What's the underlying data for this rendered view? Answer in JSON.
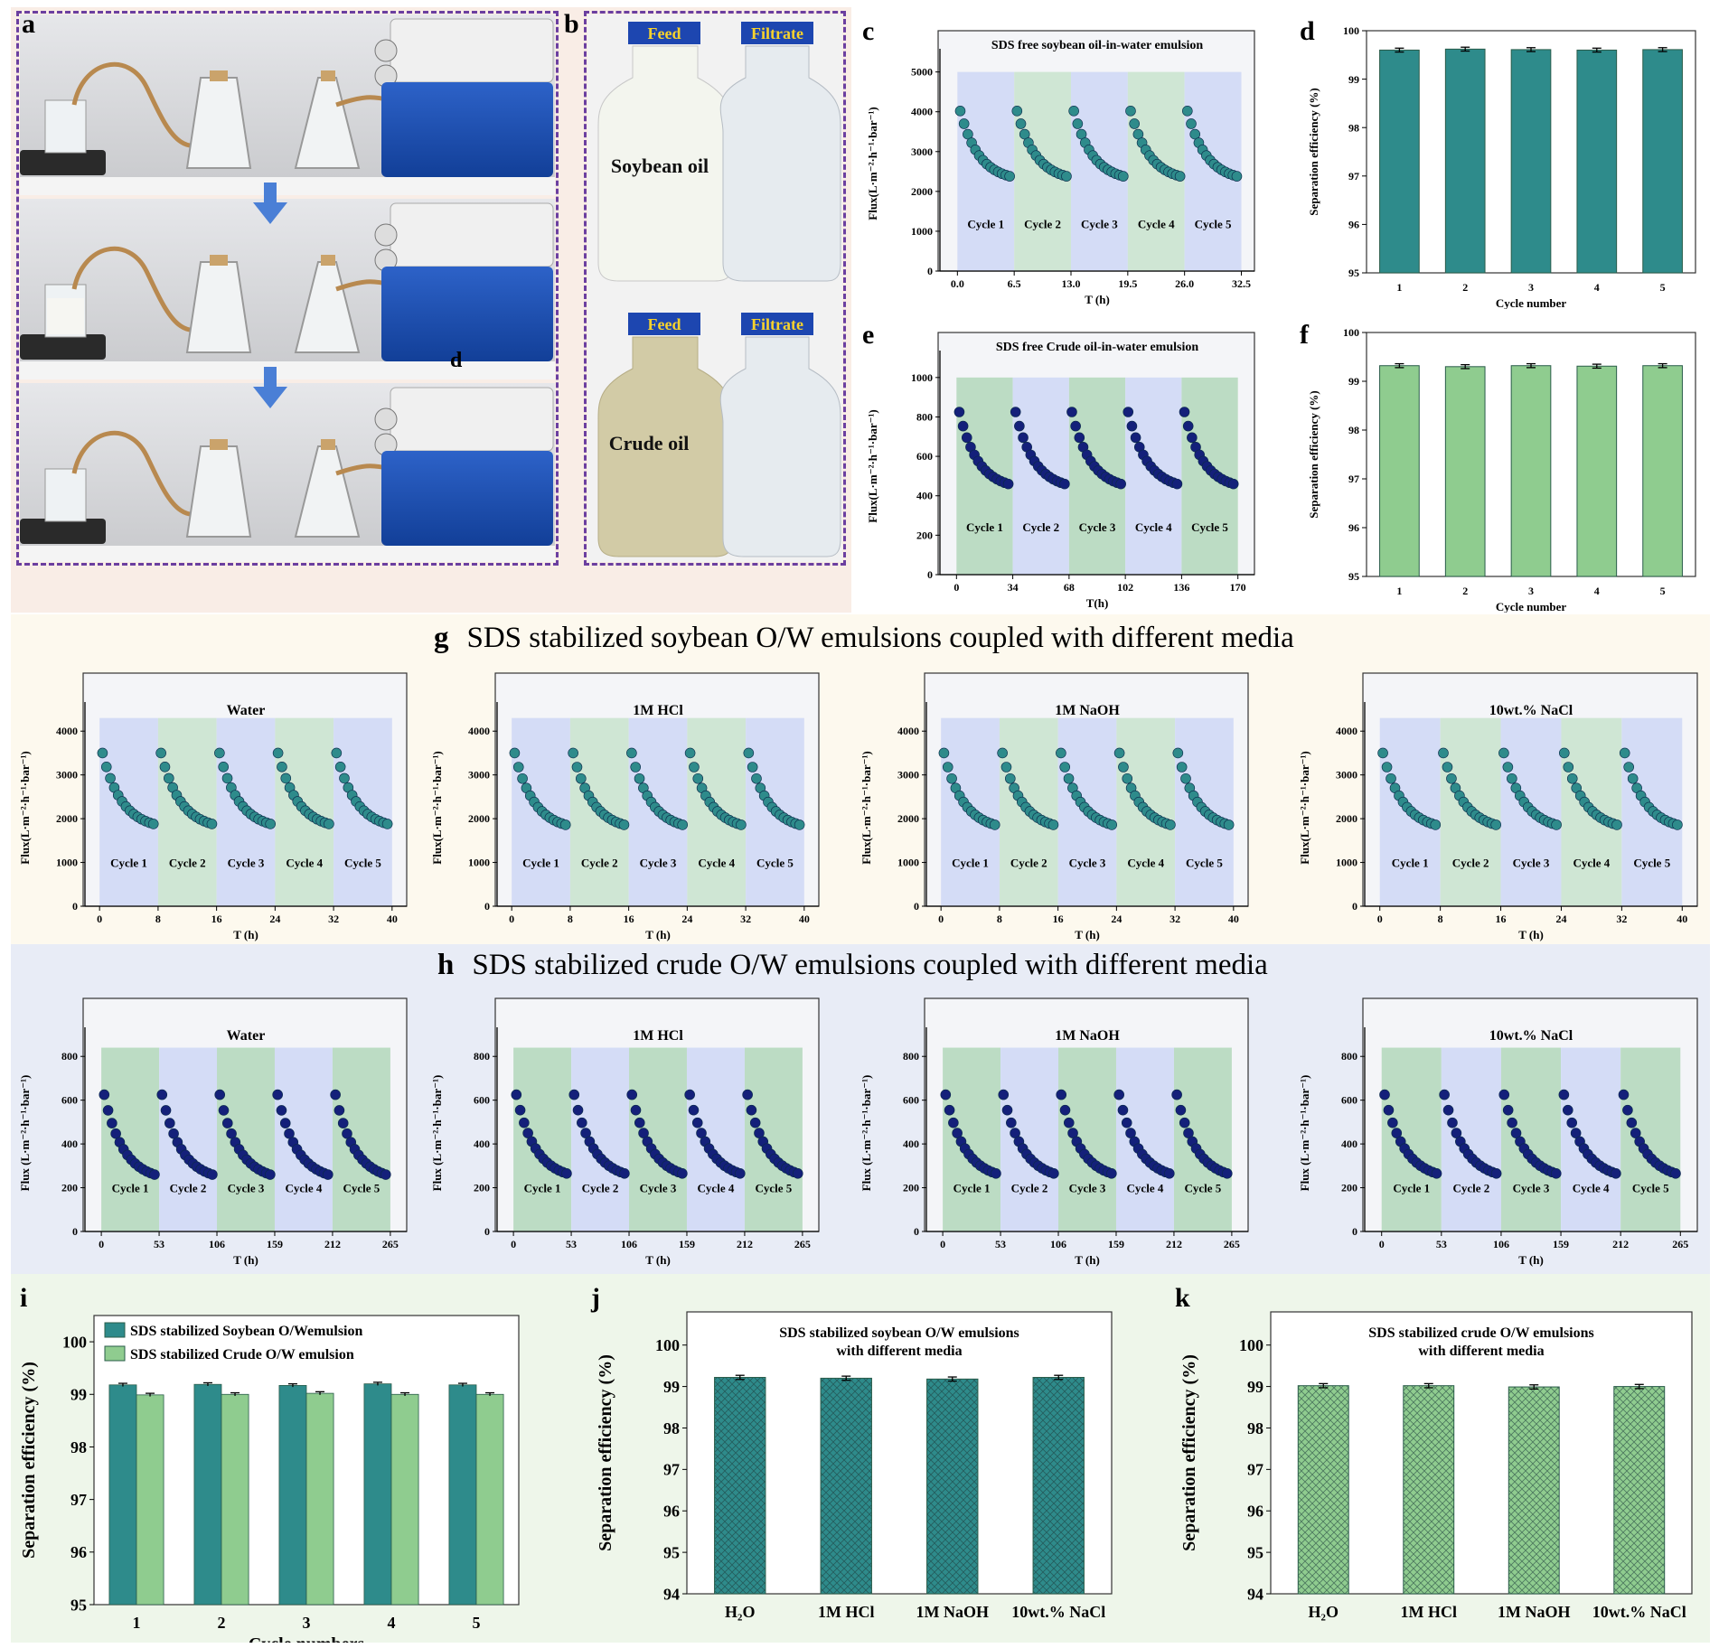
{
  "panel_labels": {
    "a": "a",
    "b": "b",
    "c": "c",
    "d": "d",
    "e": "e",
    "f": "f",
    "g": "g",
    "h": "h",
    "i": "i",
    "j": "j",
    "k": "k",
    "a_inset": "d"
  },
  "photo_b": {
    "top_feed": "Feed",
    "top_filtrate": "Filtrate",
    "top_oil": "Soybean oil",
    "bottom_feed": "Feed",
    "bottom_filtrate": "Filtrate",
    "bottom_oil": "Crude oil"
  },
  "section_g": {
    "label": "g",
    "title": "SDS stabilized soybean O/W emulsions coupled with different media"
  },
  "section_h": {
    "label": "h",
    "title": "SDS stabilized crude O/W emulsions coupled with different media"
  },
  "colors": {
    "teal": "#2e8b8b",
    "green_bar": "#8fcc8f",
    "navy": "#14207a",
    "band_blue": "#d4dcf6",
    "band_green": "#cfe6d4",
    "band_green_c": "#bcdcc4",
    "panel_peach": "#f9ede6",
    "section_g_bg": "#fdf9ee",
    "section_h_bg": "#e8ecf6",
    "section_ijk_bg": "#eef6ea"
  },
  "chart_data": [
    {
      "id": "c",
      "type": "scatter",
      "title": "SDS free soybean oil-in-water emulsion",
      "xlabel": "T (h)",
      "ylabel": "Flux(L·m⁻²·h⁻¹·bar⁻¹)",
      "xlim": [
        -2,
        34
      ],
      "ylim": [
        0,
        5400
      ],
      "xticks": [
        0,
        6.5,
        13,
        19.5,
        26,
        32.5
      ],
      "xticklabels": [
        "0.0",
        "6.5",
        "13.0",
        "19.5",
        "26.0",
        "32.5"
      ],
      "yticks": [
        0,
        1000,
        2000,
        3000,
        4000,
        5000
      ],
      "band_top": 5000,
      "cycles": [
        "Cycle 1",
        "Cycle 2",
        "Cycle 3",
        "Cycle 4",
        "Cycle 5"
      ],
      "cycle_len": 6.5,
      "flux_start": 4020,
      "flux_end": 2380,
      "marker": "teal",
      "band_colors": [
        "blue",
        "green",
        "blue",
        "green",
        "blue"
      ]
    },
    {
      "id": "d",
      "type": "bar",
      "xlabel": "Cycle number",
      "ylabel": "Separation efficiency (%)",
      "categories": [
        "1",
        "2",
        "3",
        "4",
        "5"
      ],
      "values": [
        99.6,
        99.62,
        99.61,
        99.6,
        99.61
      ],
      "errors": [
        0.04,
        0.04,
        0.04,
        0.04,
        0.04
      ],
      "ylim": [
        95,
        100
      ],
      "yticks": [
        95,
        96,
        97,
        98,
        99,
        100
      ],
      "color": "teal"
    },
    {
      "id": "e",
      "type": "scatter",
      "title": "SDS free Crude oil-in-water emulsion",
      "xlabel": "T(h)",
      "ylabel": "Flux(L·m⁻²·h⁻¹·bar⁻¹)",
      "xlim": [
        -10,
        180
      ],
      "ylim": [
        0,
        1100
      ],
      "xticks": [
        0,
        34,
        68,
        102,
        136,
        170
      ],
      "xticklabels": [
        "0",
        "34",
        "68",
        "102",
        "136",
        "170"
      ],
      "yticks": [
        0,
        200,
        400,
        600,
        800,
        1000
      ],
      "band_top": 1000,
      "cycles": [
        "Cycle 1",
        "Cycle 2",
        "Cycle 3",
        "Cycle 4",
        "Cycle 5"
      ],
      "cycle_len": 34,
      "flux_start": 825,
      "flux_end": 460,
      "marker": "navy",
      "band_colors": [
        "greenc",
        "blue",
        "greenc",
        "blue",
        "greenc"
      ]
    },
    {
      "id": "f",
      "type": "bar",
      "xlabel": "Cycle number",
      "ylabel": "Separation efficiency (%)",
      "categories": [
        "1",
        "2",
        "3",
        "4",
        "5"
      ],
      "values": [
        99.32,
        99.3,
        99.32,
        99.31,
        99.32
      ],
      "errors": [
        0.04,
        0.04,
        0.04,
        0.04,
        0.04
      ],
      "ylim": [
        95,
        100
      ],
      "yticks": [
        95,
        96,
        97,
        98,
        99,
        100
      ],
      "color": "green"
    },
    {
      "id": "g1",
      "type": "scatter",
      "title": "Water",
      "xlabel": "T (h)",
      "ylabel": "Flux(L·m⁻²·h⁻¹·bar⁻¹)",
      "xlim": [
        -2,
        42
      ],
      "ylim": [
        0,
        4500
      ],
      "xticks": [
        0,
        8,
        16,
        24,
        32,
        40
      ],
      "xticklabels": [
        "0",
        "8",
        "16",
        "24",
        "32",
        "40"
      ],
      "yticks": [
        0,
        1000,
        2000,
        3000,
        4000
      ],
      "band_top": 4300,
      "cycles": [
        "Cycle 1",
        "Cycle 2",
        "Cycle 3",
        "Cycle 4",
        "Cycle 5"
      ],
      "cycle_len": 8,
      "flux_start": 3500,
      "flux_end": 1880,
      "marker": "teal",
      "band_colors": [
        "blue",
        "green",
        "blue",
        "green",
        "blue"
      ]
    },
    {
      "id": "g2",
      "type": "scatter",
      "title": "1M HCl",
      "xlabel": "T (h)",
      "ylabel": "Flux(L·m⁻²·h⁻¹·bar⁻¹)",
      "xlim": [
        -2,
        42
      ],
      "ylim": [
        0,
        4500
      ],
      "xticks": [
        0,
        8,
        16,
        24,
        32,
        40
      ],
      "xticklabels": [
        "0",
        "8",
        "16",
        "24",
        "32",
        "40"
      ],
      "yticks": [
        0,
        1000,
        2000,
        3000,
        4000
      ],
      "band_top": 4300,
      "cycles": [
        "Cycle 1",
        "Cycle 2",
        "Cycle 3",
        "Cycle 4",
        "Cycle 5"
      ],
      "cycle_len": 8,
      "flux_start": 3500,
      "flux_end": 1860,
      "marker": "teal",
      "band_colors": [
        "blue",
        "green",
        "blue",
        "green",
        "blue"
      ]
    },
    {
      "id": "g3",
      "type": "scatter",
      "title": "1M NaOH",
      "xlabel": "T (h)",
      "ylabel": "Flux(L·m⁻²·h⁻¹·bar⁻¹)",
      "xlim": [
        -2,
        42
      ],
      "ylim": [
        0,
        4500
      ],
      "xticks": [
        0,
        8,
        16,
        24,
        32,
        40
      ],
      "xticklabels": [
        "0",
        "8",
        "16",
        "24",
        "32",
        "40"
      ],
      "yticks": [
        0,
        1000,
        2000,
        3000,
        4000
      ],
      "band_top": 4300,
      "cycles": [
        "Cycle 1",
        "Cycle 2",
        "Cycle 3",
        "Cycle 4",
        "Cycle 5"
      ],
      "cycle_len": 8,
      "flux_start": 3500,
      "flux_end": 1860,
      "marker": "teal",
      "band_colors": [
        "blue",
        "green",
        "blue",
        "green",
        "blue"
      ]
    },
    {
      "id": "g4",
      "type": "scatter",
      "title": "10wt.% NaCl",
      "xlabel": "T (h)",
      "ylabel": "Flux(L·m⁻²·h⁻¹·bar⁻¹)",
      "xlim": [
        -2,
        42
      ],
      "ylim": [
        0,
        4500
      ],
      "xticks": [
        0,
        8,
        16,
        24,
        32,
        40
      ],
      "xticklabels": [
        "0",
        "8",
        "16",
        "24",
        "32",
        "40"
      ],
      "yticks": [
        0,
        1000,
        2000,
        3000,
        4000
      ],
      "band_top": 4300,
      "cycles": [
        "Cycle 1",
        "Cycle 2",
        "Cycle 3",
        "Cycle 4",
        "Cycle 5"
      ],
      "cycle_len": 8,
      "flux_start": 3500,
      "flux_end": 1860,
      "marker": "teal",
      "band_colors": [
        "blue",
        "green",
        "blue",
        "green",
        "blue"
      ]
    },
    {
      "id": "h1",
      "type": "scatter",
      "title": "Water",
      "xlabel": "T (h)",
      "ylabel": "Flux (L·m⁻²·h⁻¹·bar⁻¹)",
      "xlim": [
        -15,
        280
      ],
      "ylim": [
        0,
        900
      ],
      "xticks": [
        0,
        53,
        106,
        159,
        212,
        265
      ],
      "xticklabels": [
        "0",
        "53",
        "106",
        "159",
        "212",
        "265"
      ],
      "yticks": [
        0,
        200,
        400,
        600,
        800
      ],
      "band_top": 840,
      "cycles": [
        "Cycle 1",
        "Cycle 2",
        "Cycle 3",
        "Cycle 4",
        "Cycle 5"
      ],
      "cycle_len": 53,
      "flux_start": 625,
      "flux_end": 260,
      "marker": "navy",
      "band_colors": [
        "greenc",
        "blue",
        "greenc",
        "blue",
        "greenc"
      ]
    },
    {
      "id": "h2",
      "type": "scatter",
      "title": "1M HCl",
      "xlabel": "T (h)",
      "ylabel": "Flux (L·m⁻²·h⁻¹·bar⁻¹)",
      "xlim": [
        -15,
        280
      ],
      "ylim": [
        0,
        900
      ],
      "xticks": [
        0,
        53,
        106,
        159,
        212,
        265
      ],
      "xticklabels": [
        "0",
        "53",
        "106",
        "159",
        "212",
        "265"
      ],
      "yticks": [
        0,
        200,
        400,
        600,
        800
      ],
      "band_top": 840,
      "cycles": [
        "Cycle 1",
        "Cycle 2",
        "Cycle 3",
        "Cycle 4",
        "Cycle 5"
      ],
      "cycle_len": 53,
      "flux_start": 625,
      "flux_end": 265,
      "marker": "navy",
      "band_colors": [
        "greenc",
        "blue",
        "greenc",
        "blue",
        "greenc"
      ]
    },
    {
      "id": "h3",
      "type": "scatter",
      "title": "1M NaOH",
      "xlabel": "T (h)",
      "ylabel": "Flux (L·m⁻²·h⁻¹·bar⁻¹)",
      "xlim": [
        -15,
        280
      ],
      "ylim": [
        0,
        900
      ],
      "xticks": [
        0,
        53,
        106,
        159,
        212,
        265
      ],
      "xticklabels": [
        "0",
        "53",
        "106",
        "159",
        "212",
        "265"
      ],
      "yticks": [
        0,
        200,
        400,
        600,
        800
      ],
      "band_top": 840,
      "cycles": [
        "Cycle 1",
        "Cycle 2",
        "Cycle 3",
        "Cycle 4",
        "Cycle 5"
      ],
      "cycle_len": 53,
      "flux_start": 625,
      "flux_end": 265,
      "marker": "navy",
      "band_colors": [
        "greenc",
        "blue",
        "greenc",
        "blue",
        "greenc"
      ]
    },
    {
      "id": "h4",
      "type": "scatter",
      "title": "10wt.% NaCl",
      "xlabel": "T (h)",
      "ylabel": "Flux (L·m⁻²·h⁻¹·bar⁻¹)",
      "xlim": [
        -15,
        280
      ],
      "ylim": [
        0,
        900
      ],
      "xticks": [
        0,
        53,
        106,
        159,
        212,
        265
      ],
      "xticklabels": [
        "0",
        "53",
        "106",
        "159",
        "212",
        "265"
      ],
      "yticks": [
        0,
        200,
        400,
        600,
        800
      ],
      "band_top": 840,
      "cycles": [
        "Cycle 1",
        "Cycle 2",
        "Cycle 3",
        "Cycle 4",
        "Cycle 5"
      ],
      "cycle_len": 53,
      "flux_start": 625,
      "flux_end": 265,
      "marker": "navy",
      "band_colors": [
        "greenc",
        "blue",
        "greenc",
        "blue",
        "greenc"
      ]
    },
    {
      "id": "i",
      "type": "bar",
      "xlabel": "Cycle numbers",
      "ylabel": "Separation efficiency (%)",
      "categories": [
        "1",
        "2",
        "3",
        "4",
        "5"
      ],
      "series": [
        {
          "name": "SDS stabilized Soybean O/Wemulsion",
          "values": [
            99.18,
            99.19,
            99.17,
            99.2,
            99.18
          ],
          "color": "teal"
        },
        {
          "name": "SDS stabilized Crude O/W emulsion",
          "values": [
            98.99,
            99.0,
            99.02,
            99.0,
            99.0
          ],
          "color": "green"
        }
      ],
      "errors": [
        0.03,
        0.03,
        0.03,
        0.03,
        0.03
      ],
      "ylim": [
        95,
        100.5
      ],
      "yticks": [
        95,
        96,
        97,
        98,
        99,
        100
      ],
      "legend": "top-left"
    },
    {
      "id": "j",
      "type": "bar",
      "title": "SDS stabilized soybean O/W emulsions",
      "subtitle": "with different media",
      "ylabel": "Separation efficiency (%)",
      "categories": [
        "H₂O",
        "1M HCl",
        "1M NaOH",
        "10wt.% NaCl"
      ],
      "values": [
        99.22,
        99.2,
        99.18,
        99.22
      ],
      "errors": [
        0.05,
        0.05,
        0.05,
        0.05
      ],
      "ylim": [
        94,
        100.8
      ],
      "yticks": [
        94,
        95,
        96,
        97,
        98,
        99,
        100
      ],
      "color": "teal",
      "hatch": true
    },
    {
      "id": "k",
      "type": "bar",
      "title": "SDS stabilized crude O/W emulsions",
      "subtitle": "with different media",
      "ylabel": "Separation efficiency (%)",
      "categories": [
        "H₂O",
        "1M HCl",
        "1M NaOH",
        "10wt.% NaCl"
      ],
      "values": [
        99.02,
        99.02,
        98.99,
        99.0
      ],
      "errors": [
        0.05,
        0.05,
        0.05,
        0.05
      ],
      "ylim": [
        94,
        100.8
      ],
      "yticks": [
        94,
        95,
        96,
        97,
        98,
        99,
        100
      ],
      "color": "green",
      "hatch": true
    }
  ]
}
